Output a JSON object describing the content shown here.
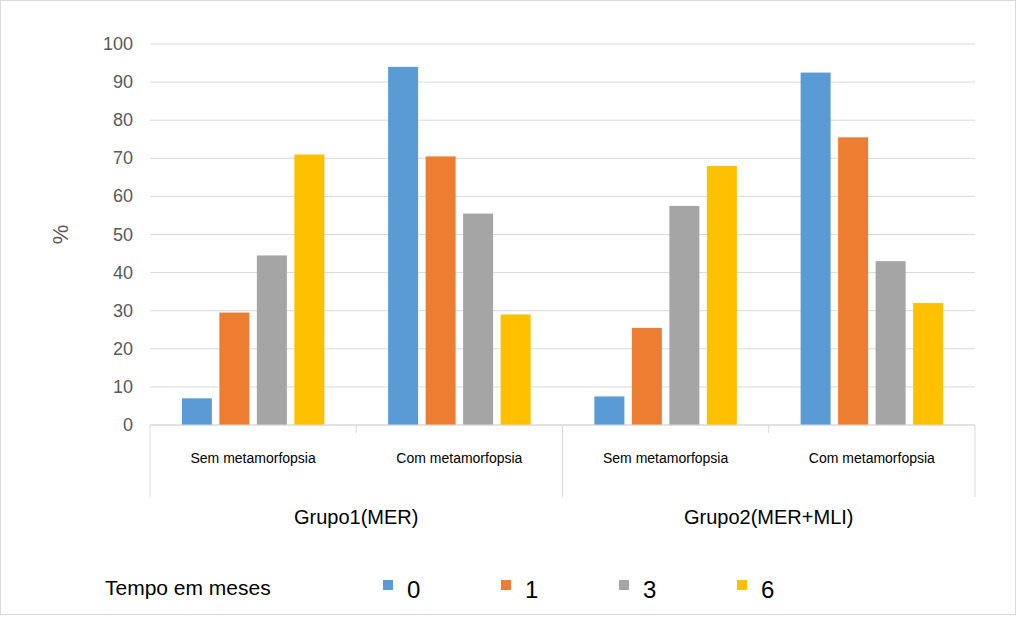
{
  "chart_data": {
    "type": "bar",
    "y_label": "%",
    "categories": [
      "Sem metamorfopsia",
      "Com metamorfopsia",
      "Sem metamorfopsia",
      "Com metamorfopsia"
    ],
    "group_labels": [
      "Grupo1(MER)",
      "Grupo2(MER+MLI)"
    ],
    "legend_title": "Tempo em meses",
    "series": [
      {
        "name": "0",
        "color": "#5b9bd5",
        "values": [
          7,
          94,
          7.5,
          92.5
        ]
      },
      {
        "name": "1",
        "color": "#ed7d31",
        "values": [
          29.5,
          70.5,
          25.5,
          75.5
        ]
      },
      {
        "name": "3",
        "color": "#a5a5a5",
        "values": [
          44.5,
          55.5,
          57.5,
          43
        ]
      },
      {
        "name": "6",
        "color": "#ffc000",
        "values": [
          71,
          29,
          68,
          32
        ]
      }
    ],
    "ylim": [
      0,
      100
    ],
    "yticks": [
      0,
      10,
      20,
      30,
      40,
      50,
      60,
      70,
      80,
      90,
      100
    ],
    "grid": true,
    "legend": "bottom"
  }
}
